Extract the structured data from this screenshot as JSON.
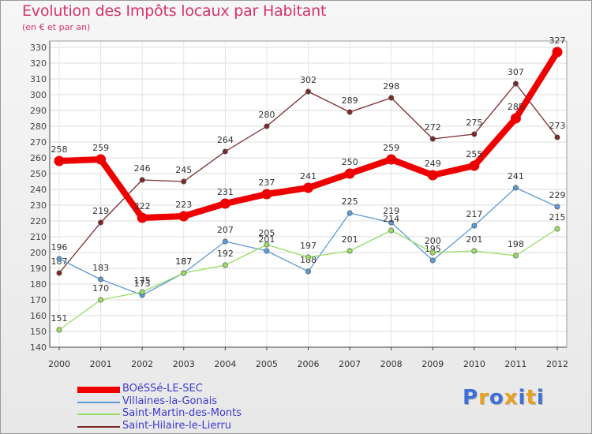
{
  "chart_data": {
    "type": "line",
    "title": "Evolution des Impôts locaux par Habitant",
    "subtitle": "(en € et par an)",
    "xlabel": "",
    "ylabel": "",
    "ylim": [
      140,
      330
    ],
    "yticks": [
      140,
      150,
      160,
      170,
      180,
      190,
      200,
      210,
      220,
      230,
      240,
      250,
      260,
      270,
      280,
      290,
      300,
      310,
      320,
      330
    ],
    "categories": [
      "2000",
      "2001",
      "2002",
      "2003",
      "2004",
      "2005",
      "2006",
      "2007",
      "2008",
      "2009",
      "2010",
      "2011",
      "2012"
    ],
    "series": [
      {
        "name": "BOëSSé-LE-SEC",
        "color": "#ee0000",
        "values": [
          258,
          259,
          222,
          223,
          231,
          237,
          241,
          250,
          259,
          249,
          255,
          285,
          327
        ]
      },
      {
        "name": "Villaines-la-Gonais",
        "color": "#5b9bd5",
        "values": [
          196,
          183,
          173,
          187,
          207,
          201,
          188,
          225,
          219,
          195,
          217,
          241,
          229
        ]
      },
      {
        "name": "Saint-Martin-des-Monts",
        "color": "#99dd66",
        "values": [
          151,
          170,
          175,
          187,
          192,
          205,
          197,
          201,
          214,
          200,
          201,
          198,
          215
        ]
      },
      {
        "name": "Saint-Hilaire-le-Lierru",
        "color": "#7a2a2a",
        "values": [
          187,
          219,
          246,
          245,
          264,
          280,
          302,
          289,
          298,
          272,
          275,
          307,
          273
        ]
      }
    ],
    "legend_position": "bottom-left"
  },
  "logo_text": [
    "P",
    "r",
    "o",
    "x",
    "i",
    "t",
    "i"
  ],
  "logo_colors": [
    "#3f6fd8",
    "#e8a020",
    "#3f6fd8",
    "#e8a020",
    "#3f6fd8",
    "#e8a020",
    "#3f6fd8"
  ]
}
